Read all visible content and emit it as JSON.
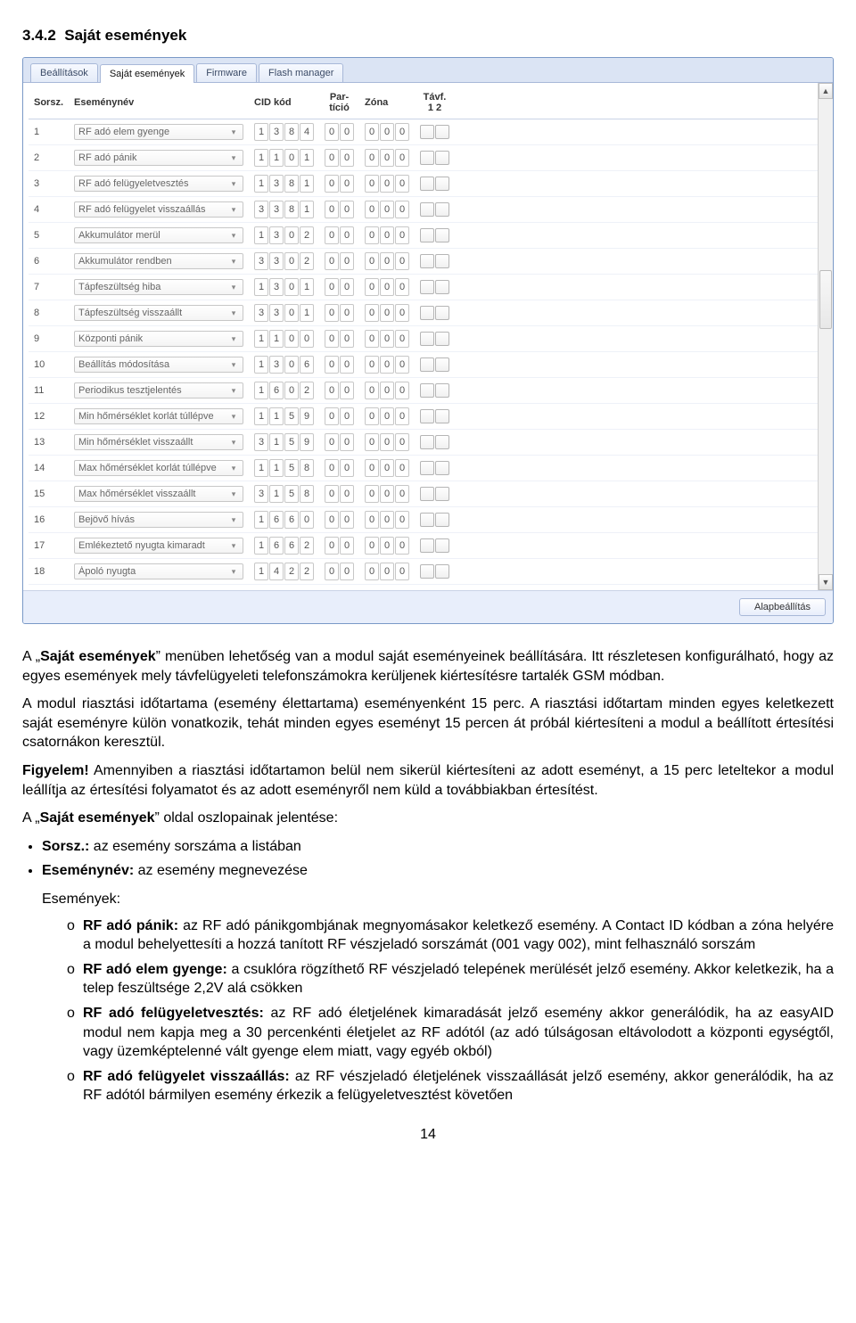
{
  "section_number": "3.4.2",
  "section_title": "Saját események",
  "tabs": [
    "Beállítások",
    "Saját események",
    "Firmware",
    "Flash manager"
  ],
  "active_tab_index": 1,
  "columns": {
    "sorsz": "Sorsz.",
    "esemenynev": "Eseménynév",
    "cid": "CID kód",
    "particio": "Par-\ntíció",
    "zona": "Zóna",
    "tavf": "Távf.\n1  2"
  },
  "rows": [
    {
      "n": 1,
      "name": "RF adó elem gyenge",
      "cid": [
        "1",
        "3",
        "8",
        "4"
      ],
      "part": [
        "0",
        "0"
      ],
      "zona": [
        "0",
        "0",
        "0"
      ]
    },
    {
      "n": 2,
      "name": "RF adó pánik",
      "cid": [
        "1",
        "1",
        "0",
        "1"
      ],
      "part": [
        "0",
        "0"
      ],
      "zona": [
        "0",
        "0",
        "0"
      ]
    },
    {
      "n": 3,
      "name": "RF adó felügyeletvesztés",
      "cid": [
        "1",
        "3",
        "8",
        "1"
      ],
      "part": [
        "0",
        "0"
      ],
      "zona": [
        "0",
        "0",
        "0"
      ]
    },
    {
      "n": 4,
      "name": "RF adó felügyelet visszaállás",
      "cid": [
        "3",
        "3",
        "8",
        "1"
      ],
      "part": [
        "0",
        "0"
      ],
      "zona": [
        "0",
        "0",
        "0"
      ]
    },
    {
      "n": 5,
      "name": "Akkumulátor merül",
      "cid": [
        "1",
        "3",
        "0",
        "2"
      ],
      "part": [
        "0",
        "0"
      ],
      "zona": [
        "0",
        "0",
        "0"
      ]
    },
    {
      "n": 6,
      "name": "Akkumulátor rendben",
      "cid": [
        "3",
        "3",
        "0",
        "2"
      ],
      "part": [
        "0",
        "0"
      ],
      "zona": [
        "0",
        "0",
        "0"
      ]
    },
    {
      "n": 7,
      "name": "Tápfeszültség hiba",
      "cid": [
        "1",
        "3",
        "0",
        "1"
      ],
      "part": [
        "0",
        "0"
      ],
      "zona": [
        "0",
        "0",
        "0"
      ]
    },
    {
      "n": 8,
      "name": "Tápfeszültség visszaállt",
      "cid": [
        "3",
        "3",
        "0",
        "1"
      ],
      "part": [
        "0",
        "0"
      ],
      "zona": [
        "0",
        "0",
        "0"
      ]
    },
    {
      "n": 9,
      "name": "Központi pánik",
      "cid": [
        "1",
        "1",
        "0",
        "0"
      ],
      "part": [
        "0",
        "0"
      ],
      "zona": [
        "0",
        "0",
        "0"
      ]
    },
    {
      "n": 10,
      "name": "Beállítás módosítása",
      "cid": [
        "1",
        "3",
        "0",
        "6"
      ],
      "part": [
        "0",
        "0"
      ],
      "zona": [
        "0",
        "0",
        "0"
      ]
    },
    {
      "n": 11,
      "name": "Periodikus tesztjelentés",
      "cid": [
        "1",
        "6",
        "0",
        "2"
      ],
      "part": [
        "0",
        "0"
      ],
      "zona": [
        "0",
        "0",
        "0"
      ]
    },
    {
      "n": 12,
      "name": "Min hőmérséklet korlát túllépve",
      "cid": [
        "1",
        "1",
        "5",
        "9"
      ],
      "part": [
        "0",
        "0"
      ],
      "zona": [
        "0",
        "0",
        "0"
      ]
    },
    {
      "n": 13,
      "name": "Min hőmérséklet visszaállt",
      "cid": [
        "3",
        "1",
        "5",
        "9"
      ],
      "part": [
        "0",
        "0"
      ],
      "zona": [
        "0",
        "0",
        "0"
      ]
    },
    {
      "n": 14,
      "name": "Max hőmérséklet korlát túllépve",
      "cid": [
        "1",
        "1",
        "5",
        "8"
      ],
      "part": [
        "0",
        "0"
      ],
      "zona": [
        "0",
        "0",
        "0"
      ]
    },
    {
      "n": 15,
      "name": "Max hőmérséklet visszaállt",
      "cid": [
        "3",
        "1",
        "5",
        "8"
      ],
      "part": [
        "0",
        "0"
      ],
      "zona": [
        "0",
        "0",
        "0"
      ]
    },
    {
      "n": 16,
      "name": "Bejövő hívás",
      "cid": [
        "1",
        "6",
        "6",
        "0"
      ],
      "part": [
        "0",
        "0"
      ],
      "zona": [
        "0",
        "0",
        "0"
      ]
    },
    {
      "n": 17,
      "name": "Emlékeztető nyugta kimaradt",
      "cid": [
        "1",
        "6",
        "6",
        "2"
      ],
      "part": [
        "0",
        "0"
      ],
      "zona": [
        "0",
        "0",
        "0"
      ]
    },
    {
      "n": 18,
      "name": "Ápoló nyugta",
      "cid": [
        "1",
        "4",
        "2",
        "2"
      ],
      "part": [
        "0",
        "0"
      ],
      "zona": [
        "0",
        "0",
        "0"
      ]
    }
  ],
  "reset_button": "Alapbeállítás",
  "scrollbar": {
    "thumb_top_pct": 36,
    "thumb_height_pct": 12
  },
  "doc": {
    "p1_a": "A „",
    "p1_bold": "Saját események",
    "p1_b": "” menüben lehetőség van a modul saját eseményeinek beállítására. Itt részletesen konfigurálható, hogy az egyes események mely távfelügyeleti telefonszámokra kerüljenek kiértesítésre tartalék GSM módban.",
    "p2": "A modul riasztási időtartama (esemény élettartama) eseményenként 15 perc. A riasztási időtartam minden egyes keletkezett saját eseményre külön vonatkozik, tehát minden egyes eseményt 15 percen át próbál kiértesíteni a modul a beállított értesítési csatornákon keresztül.",
    "p3_bold": "Figyelem!",
    "p3": " Amennyiben a riasztási időtartamon belül nem sikerül kiértesíteni az adott eseményt, a 15 perc leteltekor a modul leállítja az értesítési folyamatot és az adott eseményről nem küld a továbbiakban értesítést.",
    "p4_a": "A „",
    "p4_bold": "Saját események",
    "p4_b": "” oldal oszlopainak jelentése:",
    "li_sorsz_b": "Sorsz.:",
    "li_sorsz": "  az esemény sorszáma a listában",
    "li_esnev_b": "Eseménynév:",
    "li_esnev": " az esemény megnevezése",
    "li_es": "Események:",
    "s1_b": "RF adó pánik:",
    "s1": " az RF adó pánikgombjának megnyomásakor keletkező esemény. A Contact ID kódban a zóna helyére a modul behelyettesíti a hozzá tanított RF vészjeladó sorszámát (001 vagy 002), mint felhasználó sorszám",
    "s2_b": "RF adó elem gyenge:",
    "s2": " a csuklóra rögzíthető RF vészjeladó telepének merülését jelző esemény. Akkor keletkezik, ha a telep feszültsége 2,2V alá csökken",
    "s3_b": "RF adó felügyeletvesztés:",
    "s3": " az RF adó életjelének kimaradását jelző esemény akkor generálódik, ha az easyAID modul nem kapja meg a 30 percenkénti életjelet az RF adótól (az adó túlságosan eltávolodott a központi egységtől, vagy üzemképtelenné vált gyenge elem miatt, vagy egyéb okból)",
    "s4_b": "RF adó felügyelet visszaállás:",
    "s4": " az RF vészjeladó életjelének visszaállását jelző esemény, akkor generálódik, ha az RF adótól bármilyen esemény érkezik a felügyeletvesztést követően"
  },
  "page_number": "14"
}
